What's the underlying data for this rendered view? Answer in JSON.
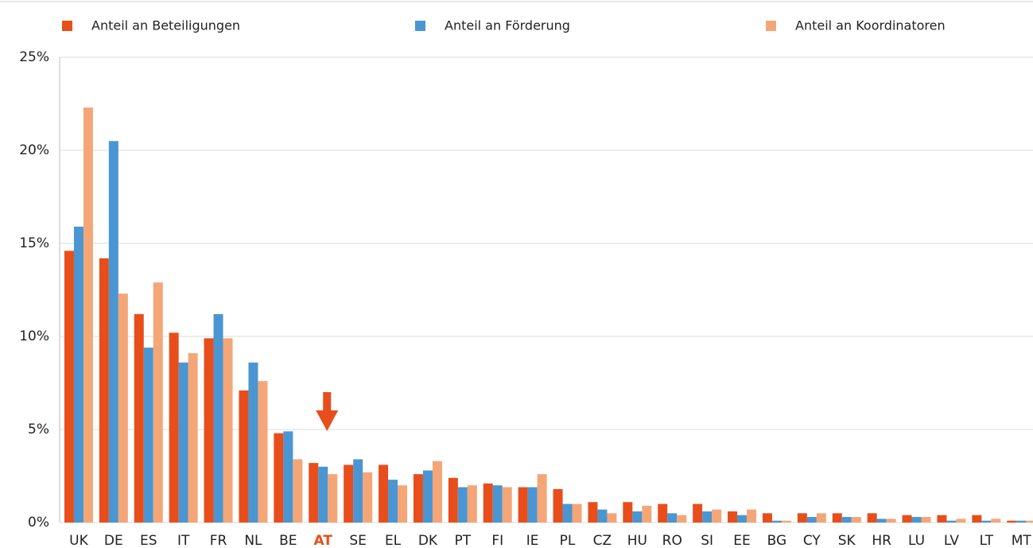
{
  "chart_data": {
    "type": "bar",
    "categories": [
      "UK",
      "DE",
      "ES",
      "IT",
      "FR",
      "NL",
      "BE",
      "AT",
      "SE",
      "EL",
      "DK",
      "PT",
      "FI",
      "IE",
      "PL",
      "CZ",
      "HU",
      "RO",
      "SI",
      "EE",
      "BG",
      "CY",
      "SK",
      "HR",
      "LU",
      "LV",
      "LT",
      "MT"
    ],
    "series": [
      {
        "name": "Anteil an Beteiligungen",
        "color": "#e84e1b",
        "values": [
          14.6,
          14.2,
          11.2,
          10.2,
          9.9,
          7.1,
          4.8,
          3.2,
          3.1,
          3.1,
          2.6,
          2.4,
          2.1,
          1.9,
          1.8,
          1.1,
          1.1,
          1.0,
          1.0,
          0.6,
          0.5,
          0.5,
          0.5,
          0.5,
          0.4,
          0.4,
          0.4,
          0.1
        ]
      },
      {
        "name": "Anteil an Förderung",
        "color": "#4a96d2",
        "values": [
          15.9,
          20.5,
          9.4,
          8.6,
          11.2,
          8.6,
          4.9,
          3.0,
          3.4,
          2.3,
          2.8,
          1.9,
          2.0,
          1.9,
          1.0,
          0.7,
          0.6,
          0.5,
          0.6,
          0.4,
          0.1,
          0.3,
          0.3,
          0.2,
          0.3,
          0.1,
          0.1,
          0.1
        ]
      },
      {
        "name": "Anteil an Koordinatoren",
        "color": "#f5a677",
        "values": [
          22.3,
          12.3,
          12.9,
          9.1,
          9.9,
          7.6,
          3.4,
          2.6,
          2.7,
          2.0,
          3.3,
          2.0,
          1.9,
          2.6,
          1.0,
          0.5,
          0.9,
          0.4,
          0.7,
          0.7,
          0.1,
          0.5,
          0.3,
          0.2,
          0.3,
          0.2,
          0.2,
          0.1
        ]
      }
    ],
    "ylim": [
      0,
      25
    ],
    "yticks": [
      {
        "value": 0,
        "label": "0%"
      },
      {
        "value": 5,
        "label": "5%"
      },
      {
        "value": 10,
        "label": "10%"
      },
      {
        "value": 15,
        "label": "15%"
      },
      {
        "value": 20,
        "label": "20%"
      },
      {
        "value": 25,
        "label": "25%"
      }
    ],
    "grid": true,
    "legend": "top",
    "highlight_category": "AT"
  }
}
